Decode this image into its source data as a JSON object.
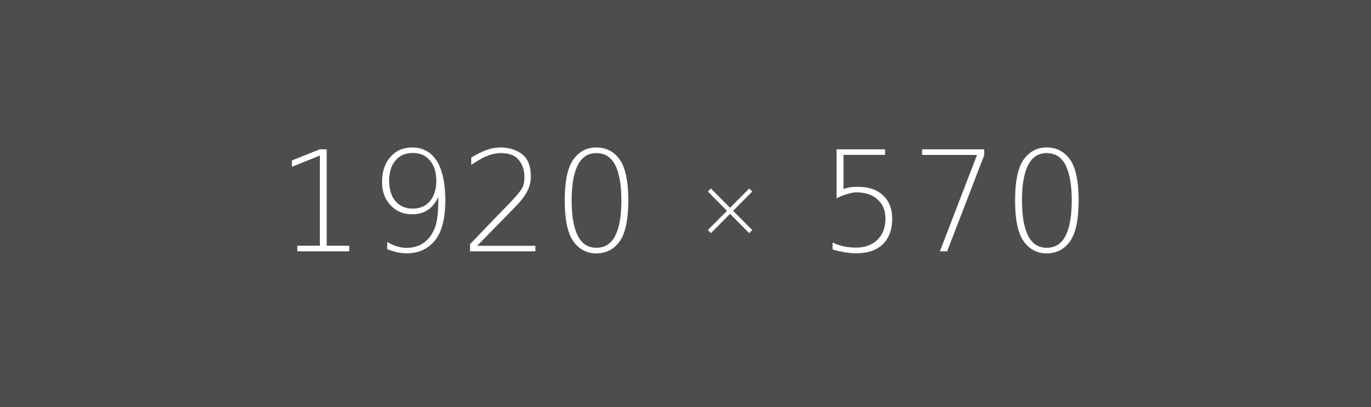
{
  "placeholder": {
    "width_label": "1920",
    "separator": "×",
    "height_label": "570",
    "background_color": "#4d4d4d",
    "text_color": "#ffffff"
  }
}
